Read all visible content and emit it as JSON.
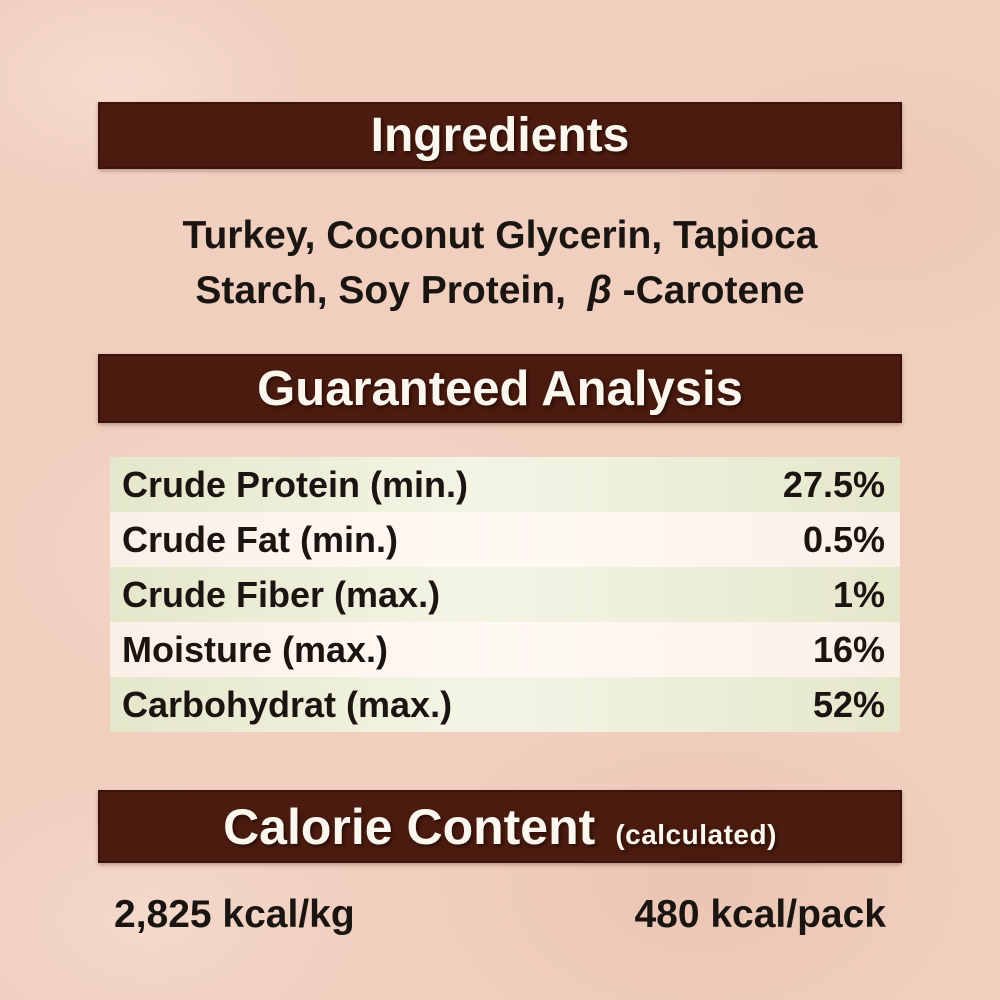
{
  "colors": {
    "page_background": "#f0cfbf",
    "banner_brown": "#4a1b0e",
    "banner_text": "#fcf7ee",
    "row_green": "#e8eacf",
    "row_pink": "#fdf5ee",
    "body_text": "#1b1512"
  },
  "ingredients": {
    "title": "Ingredients",
    "line1": "Turkey, Coconut Glycerin, Tapioca",
    "line2_before": "Starch, Soy Protein,  ",
    "line2_beta": "β",
    "line2_after": " -Carotene"
  },
  "analysis": {
    "title": "Guaranteed Analysis",
    "rows": [
      {
        "label": "Crude Protein (min.)",
        "value": "27.5%"
      },
      {
        "label": "Crude Fat (min.)",
        "value": "0.5%"
      },
      {
        "label": "Crude Fiber (max.)",
        "value": "1%"
      },
      {
        "label": "Moisture (max.)",
        "value": "16%"
      },
      {
        "label": "Carbohydrat (max.)",
        "value": "52%"
      }
    ]
  },
  "calories": {
    "title": "Calorie Content",
    "subtitle": "(calculated)",
    "per_kg": "2,825 kcal/kg",
    "per_pack": "480 kcal/pack"
  }
}
